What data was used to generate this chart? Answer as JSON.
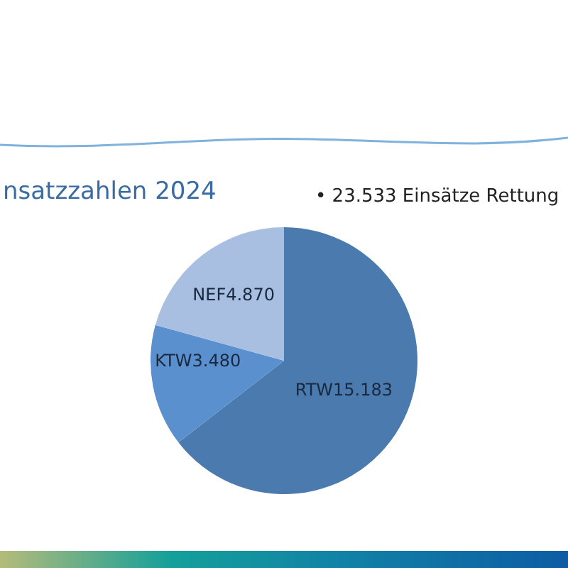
{
  "chart_data": {
    "type": "pie",
    "title": "nsatzzahlen 2024",
    "categories": [
      "RTW",
      "KTW",
      "NEF"
    ],
    "values": [
      15183,
      3480,
      4870
    ],
    "value_labels": [
      "15.183",
      "3.480",
      "4.870"
    ],
    "colors": [
      "#4a7aae",
      "#5b90cf",
      "#a8bfe1"
    ],
    "annotations": [
      "• 23.533 Einsätze Rettung"
    ]
  }
}
